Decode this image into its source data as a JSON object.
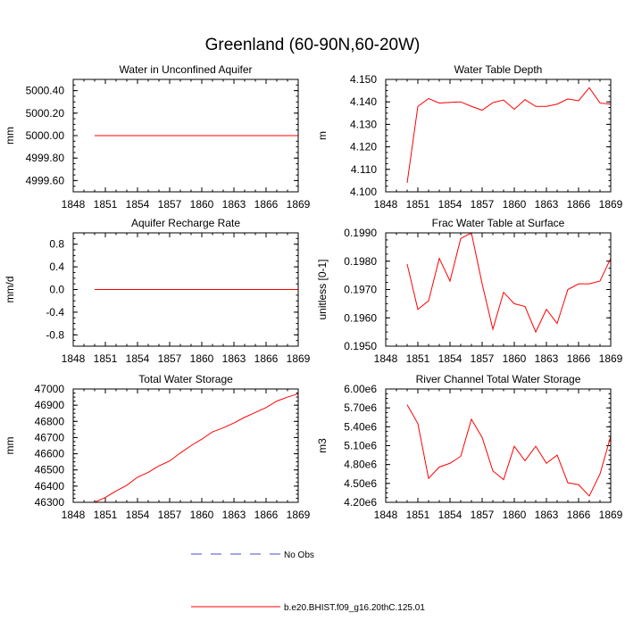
{
  "title": "Greenland (60-90N,60-20W)",
  "legend": [
    {
      "label": "No Obs",
      "color": "#4b4bcc",
      "dashed": true
    },
    {
      "label": "b.e20.BHIST.f09_g16.20thC.125.01",
      "color": "#ff0000",
      "dashed": false
    }
  ],
  "chart_data": [
    {
      "type": "line",
      "title": "Water in Unconfined Aquifer",
      "xlabel": "",
      "ylabel": "mm",
      "xlim": [
        1848,
        1869
      ],
      "ylim": [
        4999.5,
        5000.5
      ],
      "xticks": [
        1848,
        1851,
        1854,
        1857,
        1860,
        1863,
        1866,
        1869
      ],
      "yticks": [
        4999.6,
        4999.8,
        5000.0,
        5000.2,
        5000.4
      ],
      "ytick_labels": [
        "4999.60",
        "4999.80",
        "5000.00",
        "5000.20",
        "5000.40"
      ],
      "series": [
        {
          "color": "#ff0000",
          "x": [
            1850,
            1851,
            1852,
            1853,
            1854,
            1855,
            1856,
            1857,
            1858,
            1859,
            1860,
            1861,
            1862,
            1863,
            1864,
            1865,
            1866,
            1867,
            1868,
            1869
          ],
          "y": [
            5000,
            5000,
            5000,
            5000,
            5000,
            5000,
            5000,
            5000,
            5000,
            5000,
            5000,
            5000,
            5000,
            5000,
            5000,
            5000,
            5000,
            5000,
            5000,
            5000
          ]
        }
      ]
    },
    {
      "type": "line",
      "title": "Water Table Depth",
      "xlabel": "",
      "ylabel": "m",
      "xlim": [
        1848,
        1869
      ],
      "ylim": [
        4.1,
        4.15
      ],
      "xticks": [
        1848,
        1851,
        1854,
        1857,
        1860,
        1863,
        1866,
        1869
      ],
      "yticks": [
        4.1,
        4.11,
        4.12,
        4.13,
        4.14,
        4.15
      ],
      "ytick_labels": [
        "4.100",
        "4.110",
        "4.120",
        "4.130",
        "4.140",
        "4.150"
      ],
      "series": [
        {
          "color": "#ff0000",
          "x": [
            1850,
            1851,
            1852,
            1853,
            1854,
            1855,
            1856,
            1857,
            1858,
            1859,
            1860,
            1861,
            1862,
            1863,
            1864,
            1865,
            1866,
            1867,
            1868,
            1869
          ],
          "y": [
            4.104,
            4.138,
            4.1415,
            4.1395,
            4.1398,
            4.14,
            4.138,
            4.1363,
            4.1397,
            4.1408,
            4.1367,
            4.141,
            4.138,
            4.138,
            4.139,
            4.1413,
            4.1405,
            4.1463,
            4.1395,
            4.139
          ]
        }
      ]
    },
    {
      "type": "line",
      "title": "Aquifer Recharge Rate",
      "xlabel": "",
      "ylabel": "mm/d",
      "xlim": [
        1848,
        1869
      ],
      "ylim": [
        -1.0,
        1.0
      ],
      "xticks": [
        1848,
        1851,
        1854,
        1857,
        1860,
        1863,
        1866,
        1869
      ],
      "yticks": [
        -0.8,
        -0.4,
        0.0,
        0.4,
        0.8
      ],
      "ytick_labels": [
        "-0.8",
        "-0.4",
        "0.0",
        "0.4",
        "0.8"
      ],
      "series": [
        {
          "color": "#ff0000",
          "x": [
            1850,
            1851,
            1852,
            1853,
            1854,
            1855,
            1856,
            1857,
            1858,
            1859,
            1860,
            1861,
            1862,
            1863,
            1864,
            1865,
            1866,
            1867,
            1868,
            1869
          ],
          "y": [
            0,
            0,
            0,
            0,
            0,
            0,
            0,
            0,
            0,
            0,
            0,
            0,
            0,
            0,
            0,
            0,
            0,
            0,
            0,
            0
          ]
        }
      ]
    },
    {
      "type": "line",
      "title": "Frac Water Table at Surface",
      "xlabel": "",
      "ylabel": "unitless [0-1]",
      "xlim": [
        1848,
        1869
      ],
      "ylim": [
        0.195,
        0.199
      ],
      "xticks": [
        1848,
        1851,
        1854,
        1857,
        1860,
        1863,
        1866,
        1869
      ],
      "yticks": [
        0.195,
        0.196,
        0.197,
        0.198,
        0.199
      ],
      "ytick_labels": [
        "0.1950",
        "0.1960",
        "0.1970",
        "0.1980",
        "0.1990"
      ],
      "series": [
        {
          "color": "#ff0000",
          "x": [
            1850,
            1851,
            1852,
            1853,
            1854,
            1855,
            1856,
            1857,
            1858,
            1859,
            1860,
            1861,
            1862,
            1863,
            1864,
            1865,
            1866,
            1867,
            1868,
            1869
          ],
          "y": [
            0.1979,
            0.1963,
            0.1966,
            0.1981,
            0.1973,
            0.1988,
            0.199,
            0.1972,
            0.1956,
            0.1969,
            0.1965,
            0.1964,
            0.1955,
            0.1963,
            0.1958,
            0.197,
            0.1972,
            0.1972,
            0.1973,
            0.1981
          ]
        }
      ]
    },
    {
      "type": "line",
      "title": "Total Water Storage",
      "xlabel": "",
      "ylabel": "mm",
      "xlim": [
        1848,
        1869
      ],
      "ylim": [
        46300,
        47000
      ],
      "xticks": [
        1848,
        1851,
        1854,
        1857,
        1860,
        1863,
        1866,
        1869
      ],
      "yticks": [
        46300,
        46400,
        46500,
        46600,
        46700,
        46800,
        46900,
        47000
      ],
      "ytick_labels": [
        "46300",
        "46400",
        "46500",
        "46600",
        "46700",
        "46800",
        "46900",
        "47000"
      ],
      "series": [
        {
          "color": "#ff0000",
          "x": [
            1850,
            1851,
            1852,
            1853,
            1854,
            1855,
            1856,
            1857,
            1858,
            1859,
            1860,
            1861,
            1862,
            1863,
            1864,
            1865,
            1866,
            1867,
            1868,
            1869
          ],
          "y": [
            46300,
            46330,
            46370,
            46405,
            46455,
            46485,
            46525,
            46555,
            46605,
            46650,
            46690,
            46735,
            46760,
            46790,
            46825,
            46855,
            46885,
            46925,
            46950,
            46970
          ]
        }
      ]
    },
    {
      "type": "line",
      "title": "River Channel Total Water Storage",
      "xlabel": "",
      "ylabel": "m3",
      "xlim": [
        1848,
        1869
      ],
      "ylim": [
        4200000,
        6000000
      ],
      "xticks": [
        1848,
        1851,
        1854,
        1857,
        1860,
        1863,
        1866,
        1869
      ],
      "yticks": [
        4200000,
        4500000,
        4800000,
        5100000,
        5400000,
        5700000,
        6000000
      ],
      "ytick_labels": [
        "4.20e6",
        "4.50e6",
        "4.80e6",
        "5.10e6",
        "5.40e6",
        "5.70e6",
        "6.00e6"
      ],
      "series": [
        {
          "color": "#ff0000",
          "x": [
            1850,
            1851,
            1852,
            1853,
            1854,
            1855,
            1856,
            1857,
            1858,
            1859,
            1860,
            1861,
            1862,
            1863,
            1864,
            1865,
            1866,
            1867,
            1868,
            1869
          ],
          "y": [
            5750000,
            5450000,
            4580000,
            4760000,
            4820000,
            4930000,
            5520000,
            5230000,
            4700000,
            4560000,
            5090000,
            4860000,
            5090000,
            4820000,
            4950000,
            4510000,
            4480000,
            4300000,
            4650000,
            5250000
          ]
        }
      ]
    }
  ]
}
